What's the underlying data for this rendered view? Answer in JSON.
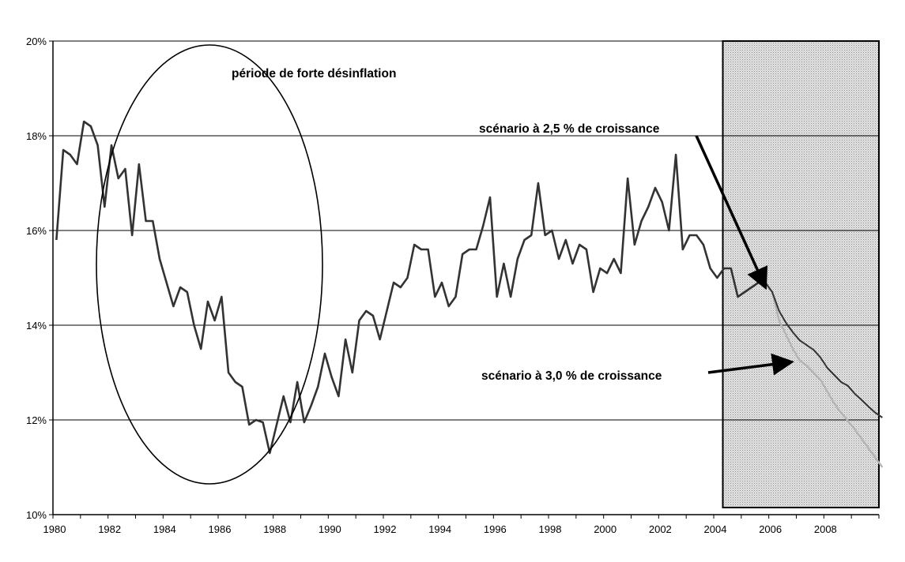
{
  "chart_data": {
    "type": "line",
    "title": "",
    "xlabel": "",
    "ylabel": "",
    "xlim": [
      1980,
      2010
    ],
    "ylim": [
      10,
      20
    ],
    "y_ticks": [
      "10%",
      "12%",
      "14%",
      "16%",
      "18%",
      "20%"
    ],
    "y_tick_values": [
      10,
      12,
      14,
      16,
      18,
      20
    ],
    "x_ticks": [
      "1980",
      "1982",
      "1984",
      "1986",
      "1988",
      "1990",
      "1992",
      "1994",
      "1996",
      "1998",
      "2000",
      "2002",
      "2004",
      "2006",
      "2008"
    ],
    "x_tick_values": [
      1980,
      1982,
      1984,
      1986,
      1988,
      1990,
      1992,
      1994,
      1996,
      1998,
      2000,
      2002,
      2004,
      2006,
      2008
    ],
    "grid": "horizontal",
    "forecast_region": {
      "from": 2004.33,
      "to": 2010,
      "pattern": "dotted-gray"
    },
    "colors": {
      "historical": "#333333",
      "scenario_25": "#333333",
      "scenario_30": "#b4b4b4",
      "grid": "#000000"
    },
    "series": [
      {
        "frequency": "quarterly",
        "x_start": 1980,
        "values": [
          15.8,
          17.7,
          17.6,
          17.4,
          18.3,
          18.2,
          17.8,
          16.5,
          17.8,
          17.1,
          17.3,
          15.9,
          17.4,
          16.2,
          16.2,
          15.4,
          14.9,
          14.4,
          14.8,
          14.7,
          14.0,
          13.5,
          14.5,
          14.1,
          14.6,
          13.0,
          12.8,
          12.7,
          11.9,
          12.0,
          11.95,
          11.3,
          11.9,
          12.5,
          11.95,
          12.8,
          11.95,
          12.3,
          12.7,
          13.4,
          12.9,
          12.5,
          13.7,
          13.0,
          14.1,
          14.3,
          14.2,
          13.7,
          14.3,
          14.9,
          14.8,
          15.0,
          15.7,
          15.6,
          15.6,
          14.6,
          14.9,
          14.4,
          14.6,
          15.5,
          15.6,
          15.6,
          16.1,
          16.7,
          14.6,
          15.3,
          14.6,
          15.4,
          15.8,
          15.9,
          17.0,
          15.9,
          16.0,
          15.4,
          15.8,
          15.3,
          15.7,
          15.6,
          14.7,
          15.2,
          15.1,
          15.4,
          15.1,
          17.1,
          15.7,
          16.2,
          16.5,
          16.9,
          16.6,
          16.0,
          17.6,
          15.6,
          15.9,
          15.9,
          15.7,
          15.2,
          15.0,
          15.2,
          15.2,
          14.6,
          14.7,
          14.8,
          14.9,
          14.9
        ]
      },
      {
        "frequency": "quarterly",
        "x_start": 2006,
        "values": [
          14.7,
          14.3,
          14.05,
          13.85,
          13.68,
          13.58,
          13.48,
          13.32,
          13.1,
          12.95,
          12.8,
          12.72,
          12.55,
          12.42,
          12.28,
          12.15,
          12.05
        ]
      },
      {
        "frequency": "quarterly",
        "x_start": 2006,
        "values": [
          14.7,
          14.1,
          13.8,
          13.5,
          13.25,
          13.15,
          13.0,
          12.85,
          12.6,
          12.35,
          12.15,
          11.98,
          11.8,
          11.6,
          11.4,
          11.2,
          11.0
        ]
      }
    ],
    "annotations": {
      "disinflation": "période de forte désinflation",
      "scenario_25": "scénario  à 2,5 % de croissance",
      "scenario_30": "scénario à 3,0 % de croissance"
    }
  }
}
